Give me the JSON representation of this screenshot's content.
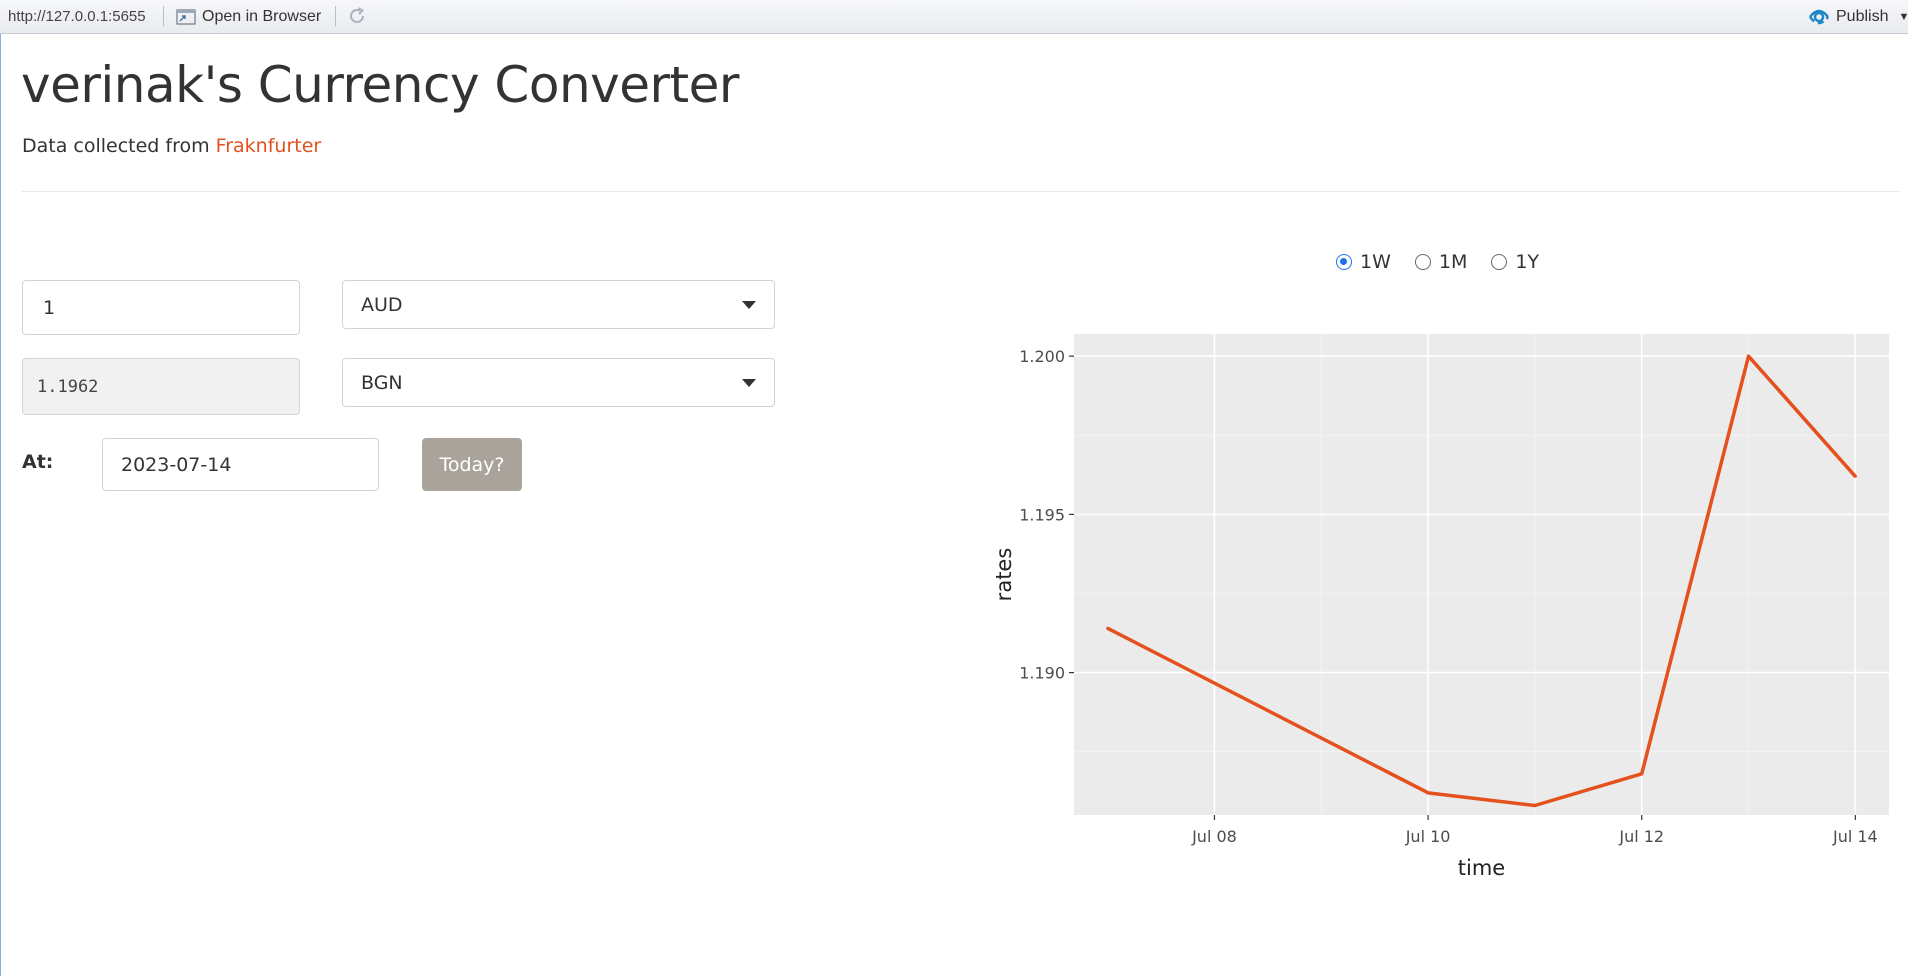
{
  "toolbar": {
    "url": "http://127.0.0.1:5655",
    "open_in_browser": "Open in Browser",
    "publish": "Publish"
  },
  "header": {
    "title": "verinak's Currency Converter",
    "subtitle_prefix": "Data collected from ",
    "source_link": "Fraknfurter"
  },
  "converter": {
    "amount": "1",
    "from_currency": "AUD",
    "result": "1.1962",
    "to_currency": "BGN",
    "at_label": "At:",
    "date": "2023-07-14",
    "today_button": "Today?"
  },
  "period": {
    "options": [
      "1W",
      "1M",
      "1Y"
    ],
    "selected": "1W"
  },
  "colors": {
    "line": "#e4511d",
    "link": "#e4511d",
    "panel": "#ebebeb",
    "radio_accent": "#1a73e8"
  },
  "chart_data": {
    "type": "line",
    "x": [
      "2023-07-07",
      "2023-07-10",
      "2023-07-11",
      "2023-07-12",
      "2023-07-13",
      "2023-07-14"
    ],
    "y": [
      1.1914,
      1.1862,
      1.1858,
      1.1868,
      1.2,
      1.1962
    ],
    "xlabel": "time",
    "ylabel": "rates",
    "x_ticks": [
      "Jul 08",
      "Jul 10",
      "Jul 12",
      "Jul 14"
    ],
    "y_ticks": [
      "1.190",
      "1.195",
      "1.200"
    ],
    "ylim": [
      1.1855,
      1.2007
    ],
    "grid": true
  }
}
